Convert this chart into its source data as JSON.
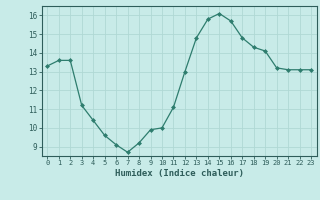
{
  "x": [
    0,
    1,
    2,
    3,
    4,
    5,
    6,
    7,
    8,
    9,
    10,
    11,
    12,
    13,
    14,
    15,
    16,
    17,
    18,
    19,
    20,
    21,
    22,
    23
  ],
  "y": [
    13.3,
    13.6,
    13.6,
    11.2,
    10.4,
    9.6,
    9.1,
    8.7,
    9.2,
    9.9,
    10.0,
    11.1,
    13.0,
    14.8,
    15.8,
    16.1,
    15.7,
    14.8,
    14.3,
    14.1,
    13.2,
    13.1,
    13.1,
    13.1
  ],
  "xlabel": "Humidex (Indice chaleur)",
  "ylim": [
    8.5,
    16.5
  ],
  "xlim": [
    -0.5,
    23.5
  ],
  "yticks": [
    9,
    10,
    11,
    12,
    13,
    14,
    15,
    16
  ],
  "xticks": [
    0,
    1,
    2,
    3,
    4,
    5,
    6,
    7,
    8,
    9,
    10,
    11,
    12,
    13,
    14,
    15,
    16,
    17,
    18,
    19,
    20,
    21,
    22,
    23
  ],
  "line_color": "#2e7d6e",
  "marker_color": "#2e7d6e",
  "bg_color": "#c8ebe8",
  "grid_color": "#b0d8d4",
  "tick_label_color": "#2e5d5a",
  "axis_color": "#2e5d5a"
}
